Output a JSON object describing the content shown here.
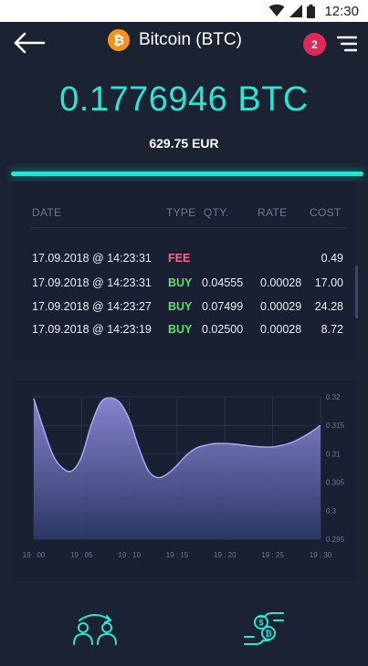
{
  "status_bar": {
    "time": "12:30"
  },
  "header": {
    "coin_symbol": "₿",
    "title": "Bitcoin (BTC)",
    "notification_count": "2"
  },
  "balance": {
    "amount": "0.1776946 BTC",
    "fiat": "629.75 EUR"
  },
  "transactions": {
    "columns": [
      "DATE",
      "TYPE",
      "QTY.",
      "RATE",
      "COST"
    ],
    "rows": [
      {
        "date": "17.09.2018 @ 14:23:31",
        "type": "FEE",
        "qty": "",
        "rate": "",
        "cost": "0.49"
      },
      {
        "date": "17.09.2018 @ 14:23:31",
        "type": "BUY",
        "qty": "0.04555",
        "rate": "0.00028",
        "cost": "17.00"
      },
      {
        "date": "17.09.2018 @ 14:23:27",
        "type": "BUY",
        "qty": "0.07499",
        "rate": "0.00029",
        "cost": "24.28"
      },
      {
        "date": "17.09.2018 @ 14:23:19",
        "type": "BUY",
        "qty": "0.02500",
        "rate": "0.00028",
        "cost": "8.72"
      }
    ]
  },
  "colors": {
    "accent": "#2fe3d6",
    "fee": "#f06a8c",
    "buy": "#5fe06a",
    "badge": "#e0285a",
    "coin": "#f7931a"
  },
  "chart_data": {
    "type": "area",
    "x": [
      "19:00",
      "19:01",
      "19:02",
      "19:03",
      "19:04",
      "19:05",
      "19:06",
      "19:07",
      "19:08",
      "19:09",
      "19:10",
      "19:11",
      "19:12",
      "19:13",
      "19:14",
      "19:15",
      "19:16",
      "19:17",
      "19:18",
      "19:19",
      "19:20",
      "19:21",
      "19:22",
      "19:23",
      "19:24",
      "19:25",
      "19:26",
      "19:27",
      "19:28",
      "19:29",
      "19:30"
    ],
    "y": [
      0.3197,
      0.3145,
      0.3098,
      0.3075,
      0.307,
      0.3095,
      0.315,
      0.319,
      0.3198,
      0.319,
      0.316,
      0.311,
      0.307,
      0.3058,
      0.3065,
      0.308,
      0.3098,
      0.311,
      0.3115,
      0.3118,
      0.3118,
      0.3117,
      0.3115,
      0.3113,
      0.3112,
      0.3112,
      0.3115,
      0.312,
      0.3128,
      0.3138,
      0.315
    ],
    "x_tick_labels": [
      "19 : 00",
      "19 : 05",
      "19 : 10",
      "19 : 15",
      "19 : 20",
      "19 : 25",
      "19 : 30"
    ],
    "y_tick_labels": [
      "0.32",
      "0.315",
      "0.31",
      "0.305",
      "0.3",
      "0.295"
    ],
    "y_ticks": [
      0.32,
      0.315,
      0.31,
      0.305,
      0.3,
      0.295
    ],
    "ylim": [
      0.295,
      0.32
    ],
    "grid": true,
    "title": "",
    "xlabel": "",
    "ylabel": ""
  },
  "bottom_nav": {
    "items": [
      {
        "icon": "user-exchange-icon"
      },
      {
        "icon": "money-exchange-icon"
      }
    ]
  }
}
